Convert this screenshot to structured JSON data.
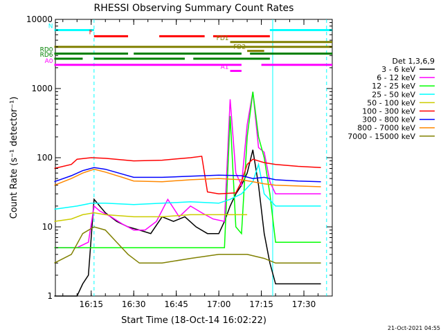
{
  "chart_data": {
    "type": "line",
    "title": "RHESSI Observing Summary Count Rates",
    "xlabel": "Start Time (18-Oct-14 16:02:22)",
    "ylabel": "Count Rate (s⁻¹ detector⁻¹)",
    "y_scale": "log",
    "ylim": [
      1,
      10000
    ],
    "xlim": [
      "16:02:22",
      "17:40:00"
    ],
    "x_ticks": [
      "16:15",
      "16:30",
      "16:45",
      "17:00",
      "17:15",
      "17:30"
    ],
    "y_ticks": [
      "1",
      "10",
      "100",
      "1000",
      "10000"
    ],
    "legend_title": "Det 1,3,6,9",
    "legend_position": "right",
    "series": [
      {
        "name": "3 - 6 keV",
        "color": "#000000",
        "x": [
          "16:02",
          "16:10",
          "16:12",
          "16:14",
          "16:16",
          "16:18",
          "16:20",
          "16:24",
          "16:28",
          "16:32",
          "16:36",
          "16:40",
          "16:44",
          "16:48",
          "16:52",
          "16:56",
          "17:00",
          "17:02",
          "17:04",
          "17:06",
          "17:08",
          "17:10",
          "17:12",
          "17:14",
          "17:16",
          "17:18",
          "17:20",
          "17:24",
          "17:28",
          "17:30",
          "17:34",
          "17:36"
        ],
        "y": [
          1,
          1,
          1.5,
          2,
          25,
          20,
          16,
          12,
          10,
          9,
          8,
          14,
          12,
          14,
          10,
          8,
          8,
          12,
          20,
          30,
          40,
          60,
          130,
          40,
          8,
          3,
          1.5,
          1.5,
          1.5,
          1.5,
          1.5,
          1.5
        ]
      },
      {
        "name": "6 - 12 keV",
        "color": "#ff00ff",
        "x": [
          "16:02",
          "16:10",
          "16:14",
          "16:16",
          "16:18",
          "16:22",
          "16:26",
          "16:30",
          "16:34",
          "16:38",
          "16:42",
          "16:46",
          "16:50",
          "16:54",
          "16:58",
          "17:02",
          "17:04",
          "17:06",
          "17:08",
          "17:10",
          "17:12",
          "17:14",
          "17:16",
          "17:18",
          "17:20",
          "17:24",
          "17:28",
          "17:32",
          "17:36"
        ],
        "y": [
          5,
          5,
          6,
          20,
          17,
          14,
          11,
          9,
          9,
          12,
          25,
          14,
          20,
          16,
          13,
          12,
          700,
          60,
          40,
          300,
          900,
          140,
          120,
          45,
          30,
          30,
          30,
          30,
          30
        ]
      },
      {
        "name": "12 - 25 keV",
        "color": "#00ff00",
        "x": [
          "16:02",
          "16:10",
          "16:20",
          "16:30",
          "16:40",
          "16:50",
          "17:00",
          "17:02",
          "17:04",
          "17:06",
          "17:08",
          "17:10",
          "17:12",
          "17:14",
          "17:16",
          "17:18",
          "17:20",
          "17:24",
          "17:28",
          "17:32",
          "17:36"
        ],
        "y": [
          5,
          5,
          5,
          5,
          5,
          5,
          5,
          5,
          400,
          10,
          8,
          200,
          900,
          200,
          100,
          30,
          6,
          6,
          6,
          6,
          6
        ]
      },
      {
        "name": "25 - 50 keV",
        "color": "#00ffff",
        "x": [
          "16:02",
          "16:10",
          "16:15",
          "16:20",
          "16:30",
          "16:40",
          "16:50",
          "17:00",
          "17:04",
          "17:08",
          "17:12",
          "17:14",
          "17:16",
          "17:20",
          "17:24",
          "17:30",
          "17:36"
        ],
        "y": [
          18,
          20,
          22,
          22,
          21,
          22,
          23,
          22,
          25,
          30,
          45,
          80,
          30,
          20,
          20,
          20,
          20
        ]
      },
      {
        "name": "50 - 100 keV",
        "color": "#cccc00",
        "x": [
          "16:02",
          "16:08",
          "16:12",
          "16:16",
          "16:20",
          "16:30",
          "16:40",
          "16:50",
          "17:00",
          "17:10"
        ],
        "y": [
          12,
          13,
          15,
          16,
          15,
          14,
          14,
          15,
          15,
          15
        ]
      },
      {
        "name": "100 - 300 keV",
        "color": "#ff0000",
        "x": [
          "16:02",
          "16:08",
          "16:10",
          "16:15",
          "16:20",
          "16:30",
          "16:40",
          "16:45",
          "16:50",
          "16:54",
          "16:56",
          "17:00",
          "17:06",
          "17:08",
          "17:10",
          "17:12",
          "17:16",
          "17:20",
          "17:28",
          "17:36"
        ],
        "y": [
          70,
          80,
          95,
          100,
          98,
          90,
          92,
          96,
          100,
          105,
          32,
          30,
          31,
          45,
          80,
          95,
          85,
          80,
          75,
          72
        ]
      },
      {
        "name": "300 - 800 keV",
        "color": "#0000ff",
        "x": [
          "16:02",
          "16:08",
          "16:12",
          "16:16",
          "16:20",
          "16:26",
          "16:30",
          "16:40",
          "16:50",
          "17:00",
          "17:08",
          "17:12",
          "17:16",
          "17:20",
          "17:28",
          "17:36"
        ],
        "y": [
          45,
          55,
          65,
          72,
          68,
          58,
          52,
          52,
          54,
          56,
          55,
          50,
          52,
          48,
          46,
          45
        ]
      },
      {
        "name": "800 - 7000 keV",
        "color": "#ff8800",
        "x": [
          "16:02",
          "16:08",
          "16:12",
          "16:16",
          "16:20",
          "16:26",
          "16:30",
          "16:40",
          "16:50",
          "17:00",
          "17:08",
          "17:12",
          "17:16",
          "17:20",
          "17:28",
          "17:36"
        ],
        "y": [
          40,
          50,
          60,
          68,
          62,
          52,
          46,
          45,
          48,
          50,
          48,
          45,
          42,
          40,
          39,
          38
        ]
      },
      {
        "name": "7000 - 15000 keV",
        "color": "#808000",
        "x": [
          "16:02",
          "16:08",
          "16:12",
          "16:16",
          "16:20",
          "16:24",
          "16:28",
          "16:32",
          "16:40",
          "16:50",
          "17:00",
          "17:10",
          "17:16",
          "17:20",
          "17:28",
          "17:36"
        ],
        "y": [
          3,
          4,
          8,
          10,
          9,
          6,
          4,
          3,
          3,
          3.5,
          4,
          4,
          3.5,
          3,
          3,
          3
        ]
      }
    ],
    "flag_bars": [
      {
        "label": "N",
        "color": "#00ffff",
        "y": 7000,
        "segments": [
          [
            "16:02",
            "16:16"
          ],
          [
            "17:18",
            "17:40"
          ]
        ]
      },
      {
        "label": "F",
        "color": "#ff0000",
        "y": 5700,
        "segments": [
          [
            "16:16",
            "16:28"
          ],
          [
            "16:39",
            "16:55"
          ],
          [
            "16:58",
            "17:18"
          ]
        ]
      },
      {
        "label": "FD1",
        "color": "#808000",
        "y": 4700,
        "segments": [
          [
            "17:04",
            "17:40"
          ]
        ]
      },
      {
        "label": "",
        "color": "#808000",
        "y": 4000,
        "segments": [
          [
            "16:02",
            "17:40"
          ]
        ]
      },
      {
        "label": "FD2",
        "color": "#808000",
        "y": 3500,
        "segments": [
          [
            "17:10",
            "17:16"
          ]
        ]
      },
      {
        "label": "RD0",
        "color": "#008000",
        "y": 3200,
        "segments": [
          [
            "16:02",
            "16:28"
          ],
          [
            "16:30",
            "17:08"
          ],
          [
            "17:11",
            "17:40"
          ]
        ]
      },
      {
        "label": "RD6",
        "color": "#008000",
        "y": 2700,
        "segments": [
          [
            "16:02",
            "16:12"
          ],
          [
            "16:16",
            "16:48"
          ],
          [
            "16:51",
            "17:18"
          ]
        ]
      },
      {
        "label": "A1",
        "color": "#ff00ff",
        "y": 1800,
        "segments": [
          [
            "17:04",
            "17:08"
          ]
        ]
      },
      {
        "label": "A0",
        "color": "#ff00ff",
        "y": 2200,
        "segments": [
          [
            "16:02",
            "17:08"
          ],
          [
            "17:15",
            "17:40"
          ]
        ]
      }
    ],
    "vertical_markers": [
      {
        "time": "16:16",
        "color": "#00ffff",
        "style": "dashed"
      },
      {
        "time": "17:19",
        "color": "#00ffff",
        "style": "solid"
      },
      {
        "time": "17:38",
        "color": "#00ffff",
        "style": "dashed"
      }
    ]
  },
  "footer": {
    "timestamp": "21-Oct-2021 04:55"
  }
}
